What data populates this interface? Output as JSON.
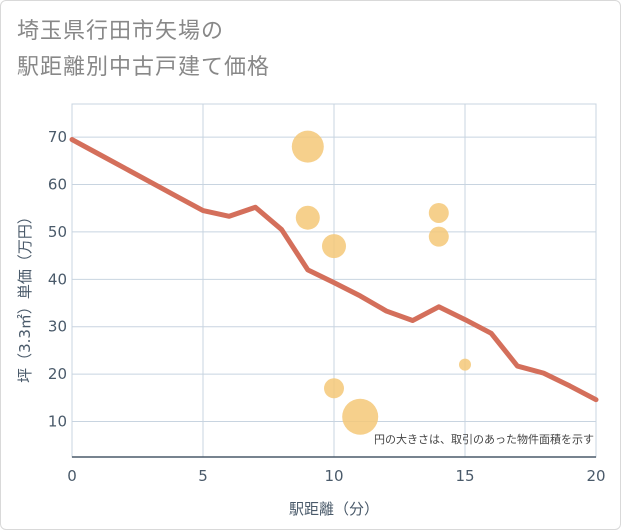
{
  "title_lines": [
    "埼玉県行田市矢場の",
    "駅距離別中古戸建て価格"
  ],
  "chart_data": {
    "type": "scatter",
    "title": "埼玉県行田市矢場の駅距離別中古戸建て価格",
    "xlabel": "駅距離（分）",
    "ylabel": "坪（3.3㎡）単価（万円）",
    "xlim": [
      0,
      20
    ],
    "ylim": [
      2.5,
      77
    ],
    "xticks": [
      0,
      5,
      10,
      15,
      20
    ],
    "yticks": [
      10,
      20,
      30,
      40,
      50,
      60,
      70
    ],
    "grid": true,
    "annotation": "円の大きさは、取引のあった物件面積を示す",
    "colors": {
      "bubble": "#f5c878",
      "line": "#d46f5b",
      "grid": "#c8d4e0",
      "axis": "#4a5a6a"
    },
    "scatter": [
      {
        "x": 9,
        "y": 68,
        "size": 3
      },
      {
        "x": 9,
        "y": 53,
        "size": 2
      },
      {
        "x": 10,
        "y": 47,
        "size": 2
      },
      {
        "x": 14,
        "y": 54,
        "size": 1.5
      },
      {
        "x": 14,
        "y": 49,
        "size": 1.5
      },
      {
        "x": 15,
        "y": 22,
        "size": 0.5
      },
      {
        "x": 10,
        "y": 17,
        "size": 1.5
      },
      {
        "x": 11,
        "y": 11,
        "size": 3.5
      }
    ],
    "trend_line": {
      "x": [
        0,
        1,
        2,
        3,
        4,
        5,
        6,
        7,
        8,
        9,
        10,
        11,
        12,
        13,
        14,
        15,
        16,
        17,
        18,
        19,
        20
      ],
      "y": [
        69.5,
        66.5,
        63.5,
        60.5,
        57.5,
        54.5,
        53.3,
        55.2,
        50.5,
        42,
        39.3,
        36.5,
        33.3,
        31.3,
        34.2,
        31.5,
        28.6,
        21.7,
        20.2,
        17.5,
        14.6
      ]
    }
  }
}
